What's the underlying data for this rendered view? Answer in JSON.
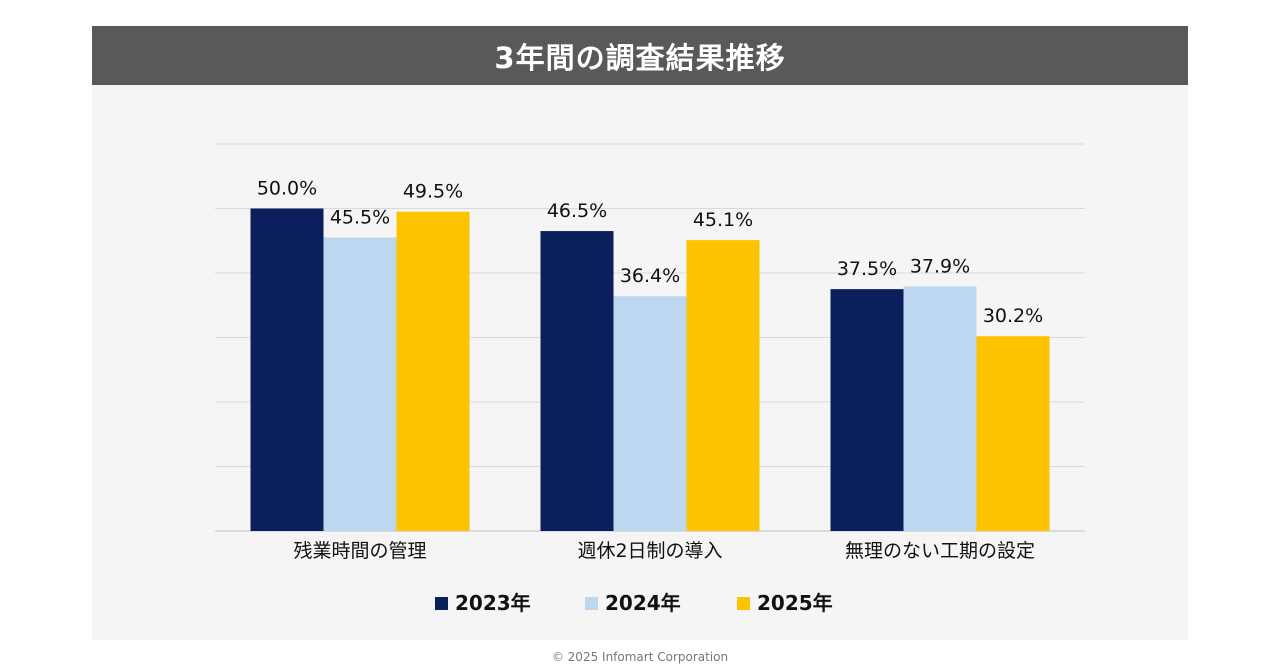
{
  "title": "3年間の調査結果推移",
  "footer": "© 2025 Infomart Corporation",
  "chart_data": {
    "type": "bar",
    "categories": [
      "残業時間の管理",
      "週休2日制の導入",
      "無理のない工期の設定"
    ],
    "series": [
      {
        "name": "2023年",
        "color": "#0b1f5c",
        "values": [
          50.0,
          46.5,
          37.5
        ],
        "labels": [
          "50.0%",
          "46.5%",
          "37.5%"
        ]
      },
      {
        "name": "2024年",
        "color": "#bdd7f0",
        "values": [
          45.5,
          36.4,
          37.9
        ],
        "labels": [
          "45.5%",
          "36.4%",
          "37.9%"
        ]
      },
      {
        "name": "2025年",
        "color": "#fdc300",
        "values": [
          49.5,
          45.1,
          30.2
        ],
        "labels": [
          "49.5%",
          "45.1%",
          "30.2%"
        ]
      }
    ],
    "ylim": [
      0,
      60
    ],
    "grid": true,
    "legend_position": "bottom"
  }
}
